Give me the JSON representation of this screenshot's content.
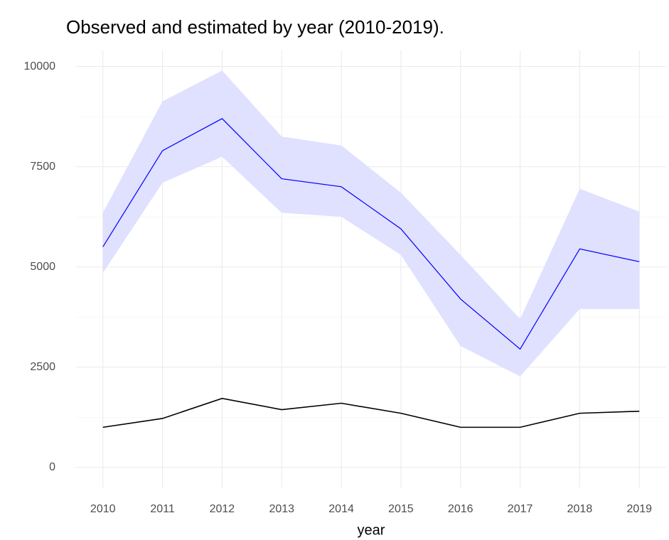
{
  "chart_data": {
    "type": "line",
    "title": "Observed and estimated by year (2010-2019).",
    "x_label": "year",
    "x": [
      2010,
      2011,
      2012,
      2013,
      2014,
      2015,
      2016,
      2017,
      2018,
      2019
    ],
    "band": {
      "color": "#e0e0ff",
      "upper": [
        6350,
        9130,
        9900,
        8250,
        8030,
        6850,
        5300,
        3700,
        6950,
        6380
      ],
      "lower": [
        4850,
        7100,
        7750,
        6350,
        6250,
        5300,
        3030,
        2270,
        3950,
        3950
      ]
    },
    "series": [
      {
        "color": "#0000ff",
        "values": [
          5500,
          7900,
          8700,
          7200,
          7000,
          5950,
          4200,
          2950,
          5450,
          5130
        ]
      },
      {
        "color": "#000000",
        "values": [
          1000,
          1220,
          1720,
          1440,
          1600,
          1350,
          1000,
          1000,
          1350,
          1400
        ]
      }
    ],
    "xlim": [
      2009.55,
      2019.45
    ],
    "xticks": [
      2010,
      2011,
      2012,
      2013,
      2014,
      2015,
      2016,
      2017,
      2018,
      2019
    ],
    "ylim": [
      -500,
      10400
    ],
    "yticks": [
      0,
      2500,
      5000,
      7500,
      10000
    ],
    "grid": true
  }
}
